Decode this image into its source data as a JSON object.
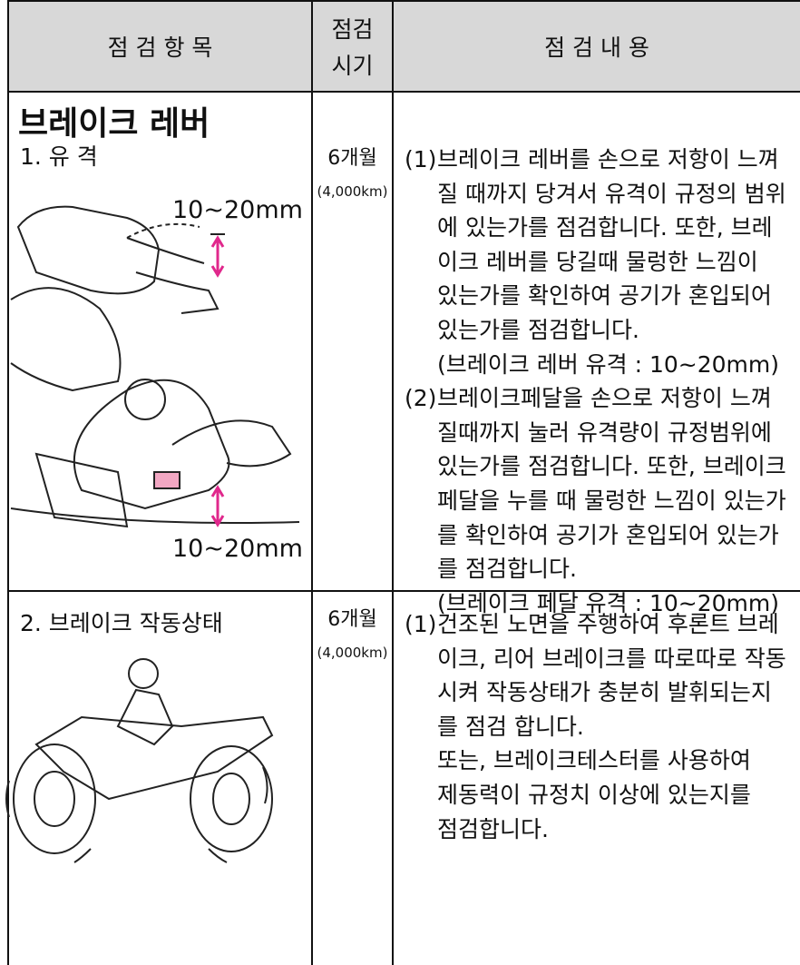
{
  "header": {
    "item": "점 검 항 목",
    "period": [
      "점검",
      "시기"
    ],
    "content": "점 검 내 용"
  },
  "rows": [
    {
      "title": "브레이크 레버",
      "item": "1. 유 격",
      "figure_labels": [
        "10~20mm",
        "10~20mm"
      ],
      "period": "6개월",
      "period_km": "(4,000km)",
      "content": [
        {
          "marker": "(1)",
          "lines": [
            "브레이크 레버를 손으로 저항이 느껴",
            "질 때까지 당겨서 유격이 규정의 범위",
            "에 있는가를 점검합니다. 또한, 브레",
            "이크 레버를 당길때 물렁한 느낌이",
            "있는가를 확인하여 공기가 혼입되어",
            "있는가를 점검합니다.",
            "(브레이크 레버 유격 : 10~20mm)"
          ]
        },
        {
          "marker": "(2)",
          "lines": [
            "브레이크페달을 손으로 저항이 느껴",
            "질때까지 눌러 유격량이 규정범위에",
            "있는가를 점검합니다. 또한, 브레이크",
            "페달을 누를 때 물렁한 느낌이 있는가",
            "를 확인하여 공기가 혼입되어 있는가",
            "를 점검합니다.",
            "(브레이크 페달 유격 : 10~20mm)"
          ]
        }
      ]
    },
    {
      "item": "2. 브레이크 작동상태",
      "period": "6개월",
      "period_km": "(4,000km)",
      "content": [
        {
          "marker": "(1)",
          "lines": [
            "건조된 노면을 주행하여 후론트 브레",
            "이크, 리어 브레이크를 따로따로 작동",
            "시켜 작동상태가 충분히 발휘되는지",
            "를 점검 합니다.",
            "또는, 브레이크테스터를 사용하여",
            "제동력이 규정치 이상에 있는지를",
            "점검합니다."
          ]
        }
      ]
    }
  ]
}
